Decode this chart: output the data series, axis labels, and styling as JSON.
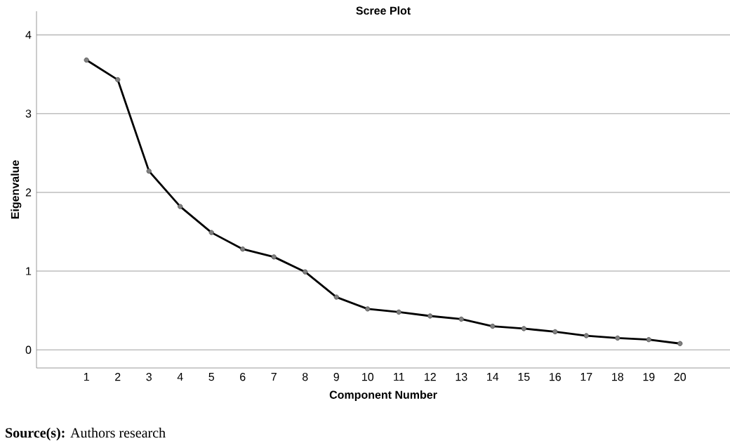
{
  "chart_data": {
    "type": "line",
    "title": "Scree Plot",
    "xlabel": "Component Number",
    "ylabel": "Eigenvalue",
    "categories": [
      "1",
      "2",
      "3",
      "4",
      "5",
      "6",
      "7",
      "8",
      "9",
      "10",
      "11",
      "12",
      "13",
      "14",
      "15",
      "16",
      "17",
      "18",
      "19",
      "20"
    ],
    "series": [
      {
        "color": "#000000",
        "values": [
          3.68,
          3.43,
          2.27,
          1.82,
          1.49,
          1.28,
          1.18,
          0.99,
          0.67,
          0.52,
          0.48,
          0.43,
          0.39,
          0.3,
          0.27,
          0.23,
          0.18,
          0.15,
          0.13,
          0.08
        ]
      }
    ],
    "ylim": [
      -0.23,
      4.3
    ],
    "yticks": [
      0,
      1,
      2,
      3,
      4
    ],
    "grid": "y",
    "marker": "circle",
    "line_style": "solid",
    "annotations": [
      "**Source(s):** Authors research"
    ]
  }
}
